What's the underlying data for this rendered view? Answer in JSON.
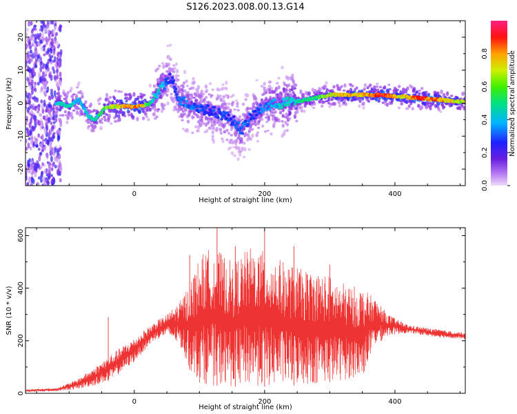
{
  "title": "S126.2023.008.00.13.G14",
  "chart_data": [
    {
      "type": "heatmap",
      "xlabel": "Height of straight line (km)",
      "ylabel": "Frequency (Hz)",
      "xlim": [
        -167,
        508
      ],
      "ylim": [
        -25,
        25
      ],
      "x_ticks": [
        0,
        200,
        400
      ],
      "y_ticks": [
        -20,
        -10,
        0,
        10,
        20
      ],
      "colorbar": {
        "label": "Normalized spectral amplitude",
        "range": [
          0,
          1
        ],
        "ticks": [
          0.0,
          0.2,
          0.4,
          0.6,
          0.8
        ],
        "colormap": [
          "#e8c8f8",
          "#8a2be2",
          "#2020ff",
          "#00c8ff",
          "#00e060",
          "#c0f000",
          "#ffa000",
          "#ff0000",
          "#ff2080"
        ]
      },
      "ridge": [
        {
          "x": -115,
          "f": 0.0,
          "a": 0.45
        },
        {
          "x": -100,
          "f": -1.0,
          "a": 0.5
        },
        {
          "x": -85,
          "f": 1.0,
          "a": 0.4
        },
        {
          "x": -70,
          "f": -4.0,
          "a": 0.45
        },
        {
          "x": -60,
          "f": -5.0,
          "a": 0.5
        },
        {
          "x": -45,
          "f": -1.5,
          "a": 0.6
        },
        {
          "x": -30,
          "f": -1.0,
          "a": 0.75
        },
        {
          "x": -10,
          "f": -1.0,
          "a": 0.9
        },
        {
          "x": 10,
          "f": -1.0,
          "a": 0.85
        },
        {
          "x": 25,
          "f": 0.0,
          "a": 0.5
        },
        {
          "x": 40,
          "f": 4.0,
          "a": 0.45
        },
        {
          "x": 55,
          "f": 8.0,
          "a": 0.25
        },
        {
          "x": 70,
          "f": 1.0,
          "a": 0.35
        },
        {
          "x": 90,
          "f": -1.0,
          "a": 0.35
        },
        {
          "x": 110,
          "f": -2.0,
          "a": 0.3
        },
        {
          "x": 130,
          "f": -3.0,
          "a": 0.3
        },
        {
          "x": 150,
          "f": -5.0,
          "a": 0.3
        },
        {
          "x": 165,
          "f": -8.0,
          "a": 0.35
        },
        {
          "x": 180,
          "f": -4.0,
          "a": 0.3
        },
        {
          "x": 200,
          "f": -1.0,
          "a": 0.35
        },
        {
          "x": 225,
          "f": 0.0,
          "a": 0.45
        },
        {
          "x": 250,
          "f": 0.5,
          "a": 0.5
        },
        {
          "x": 275,
          "f": 1.5,
          "a": 0.55
        },
        {
          "x": 300,
          "f": 2.5,
          "a": 0.7
        },
        {
          "x": 325,
          "f": 2.5,
          "a": 0.85
        },
        {
          "x": 350,
          "f": 2.5,
          "a": 0.8
        },
        {
          "x": 380,
          "f": 2.5,
          "a": 1.0
        },
        {
          "x": 410,
          "f": 2.0,
          "a": 0.75
        },
        {
          "x": 440,
          "f": 1.5,
          "a": 0.95
        },
        {
          "x": 470,
          "f": 1.0,
          "a": 0.85
        },
        {
          "x": 500,
          "f": 0.5,
          "a": 0.7
        }
      ]
    },
    {
      "type": "line",
      "xlabel": "Height of straight line (km)",
      "ylabel": "SNR (10 * v/v)",
      "xlim": [
        -167,
        508
      ],
      "ylim": [
        0,
        630
      ],
      "x_ticks": [
        0,
        200,
        400
      ],
      "y_ticks": [
        0,
        200,
        400,
        600
      ],
      "color": "#ee3333",
      "envelope": [
        {
          "x": -167,
          "lo": 5,
          "hi": 15
        },
        {
          "x": -120,
          "lo": 8,
          "hi": 20
        },
        {
          "x": -90,
          "lo": 15,
          "hi": 50
        },
        {
          "x": -60,
          "lo": 30,
          "hi": 100
        },
        {
          "x": -35,
          "lo": 50,
          "hi": 150
        },
        {
          "x": 0,
          "lo": 120,
          "hi": 210
        },
        {
          "x": 30,
          "lo": 200,
          "hi": 270
        },
        {
          "x": 50,
          "lo": 220,
          "hi": 300
        },
        {
          "x": 70,
          "lo": 180,
          "hi": 350
        },
        {
          "x": 85,
          "lo": 90,
          "hi": 420
        },
        {
          "x": 100,
          "lo": 40,
          "hi": 520
        },
        {
          "x": 120,
          "lo": 30,
          "hi": 560
        },
        {
          "x": 150,
          "lo": 25,
          "hi": 500
        },
        {
          "x": 180,
          "lo": 30,
          "hi": 560
        },
        {
          "x": 200,
          "lo": 25,
          "hi": 540
        },
        {
          "x": 230,
          "lo": 30,
          "hi": 500
        },
        {
          "x": 260,
          "lo": 30,
          "hi": 470
        },
        {
          "x": 290,
          "lo": 40,
          "hi": 460
        },
        {
          "x": 320,
          "lo": 50,
          "hi": 420
        },
        {
          "x": 350,
          "lo": 60,
          "hi": 400
        },
        {
          "x": 370,
          "lo": 180,
          "hi": 360
        },
        {
          "x": 390,
          "lo": 220,
          "hi": 300
        },
        {
          "x": 420,
          "lo": 230,
          "hi": 260
        },
        {
          "x": 460,
          "lo": 215,
          "hi": 245
        },
        {
          "x": 508,
          "lo": 205,
          "hi": 230
        }
      ],
      "spikes": [
        {
          "x": -40,
          "y": 290
        },
        {
          "x": 85,
          "y": 525
        },
        {
          "x": 127,
          "y": 630
        },
        {
          "x": 155,
          "y": 560
        },
        {
          "x": 200,
          "y": 625
        },
        {
          "x": 245,
          "y": 560
        },
        {
          "x": 300,
          "y": 490
        }
      ]
    }
  ]
}
